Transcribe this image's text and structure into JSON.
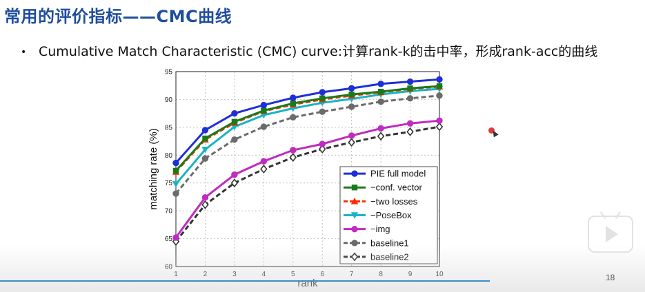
{
  "slide": {
    "title": "常用的评价指标——CMC曲线",
    "bullet_symbol": "•",
    "bullet_text": "Cumulative Match Characteristic (CMC) curve:计算rank-k的击中率，形成rank-acc的曲线",
    "page_number": "18"
  },
  "chart_data": {
    "type": "line",
    "title": "",
    "xlabel": "rank",
    "ylabel": "matching rate (%)",
    "x": [
      1,
      2,
      3,
      4,
      5,
      6,
      7,
      8,
      9,
      10
    ],
    "xlim": [
      1,
      10
    ],
    "ylim": [
      60,
      95
    ],
    "yticks": [
      60,
      65,
      70,
      75,
      80,
      85,
      90,
      95
    ],
    "grid": true,
    "legend_position": "bottom-right",
    "series": [
      {
        "name": "PIE full model",
        "color": "#1f2fd6",
        "dash": "solid",
        "marker": "circle",
        "values": [
          78.6,
          84.5,
          87.5,
          89.0,
          90.3,
          91.3,
          92.0,
          92.8,
          93.2,
          93.6
        ]
      },
      {
        "name": "−conf. vector",
        "color": "#1a7a1a",
        "dash": "solid",
        "marker": "square",
        "values": [
          77.2,
          83.0,
          86.0,
          88.0,
          89.3,
          90.2,
          90.9,
          91.4,
          92.0,
          92.4
        ]
      },
      {
        "name": "−two losses",
        "color": "#ff2a00",
        "dash": "dashed",
        "marker": "triangle-up",
        "values": [
          77.0,
          82.8,
          85.8,
          87.9,
          89.1,
          90.0,
          90.7,
          91.3,
          91.9,
          92.3
        ]
      },
      {
        "name": "−PoseBox",
        "color": "#19b4c4",
        "dash": "solid",
        "marker": "triangle-down",
        "values": [
          74.8,
          81.0,
          85.1,
          87.2,
          88.4,
          89.4,
          90.1,
          90.9,
          91.5,
          91.9
        ]
      },
      {
        "name": "−img",
        "color": "#c02bc0",
        "dash": "solid",
        "marker": "circle",
        "values": [
          65.2,
          72.4,
          76.5,
          78.9,
          80.9,
          82.0,
          83.5,
          84.8,
          85.7,
          86.2
        ]
      },
      {
        "name": "baseline1",
        "color": "#6b6b6b",
        "dash": "dashed",
        "marker": "circle",
        "values": [
          73.1,
          79.4,
          82.8,
          85.1,
          86.8,
          87.8,
          88.7,
          89.6,
          90.2,
          90.7
        ]
      },
      {
        "name": "baseline2",
        "color": "#333333",
        "dash": "dashed",
        "marker": "diamond",
        "values": [
          64.5,
          71.1,
          75.0,
          77.5,
          79.6,
          81.1,
          82.3,
          83.4,
          84.2,
          85.1
        ]
      }
    ]
  }
}
